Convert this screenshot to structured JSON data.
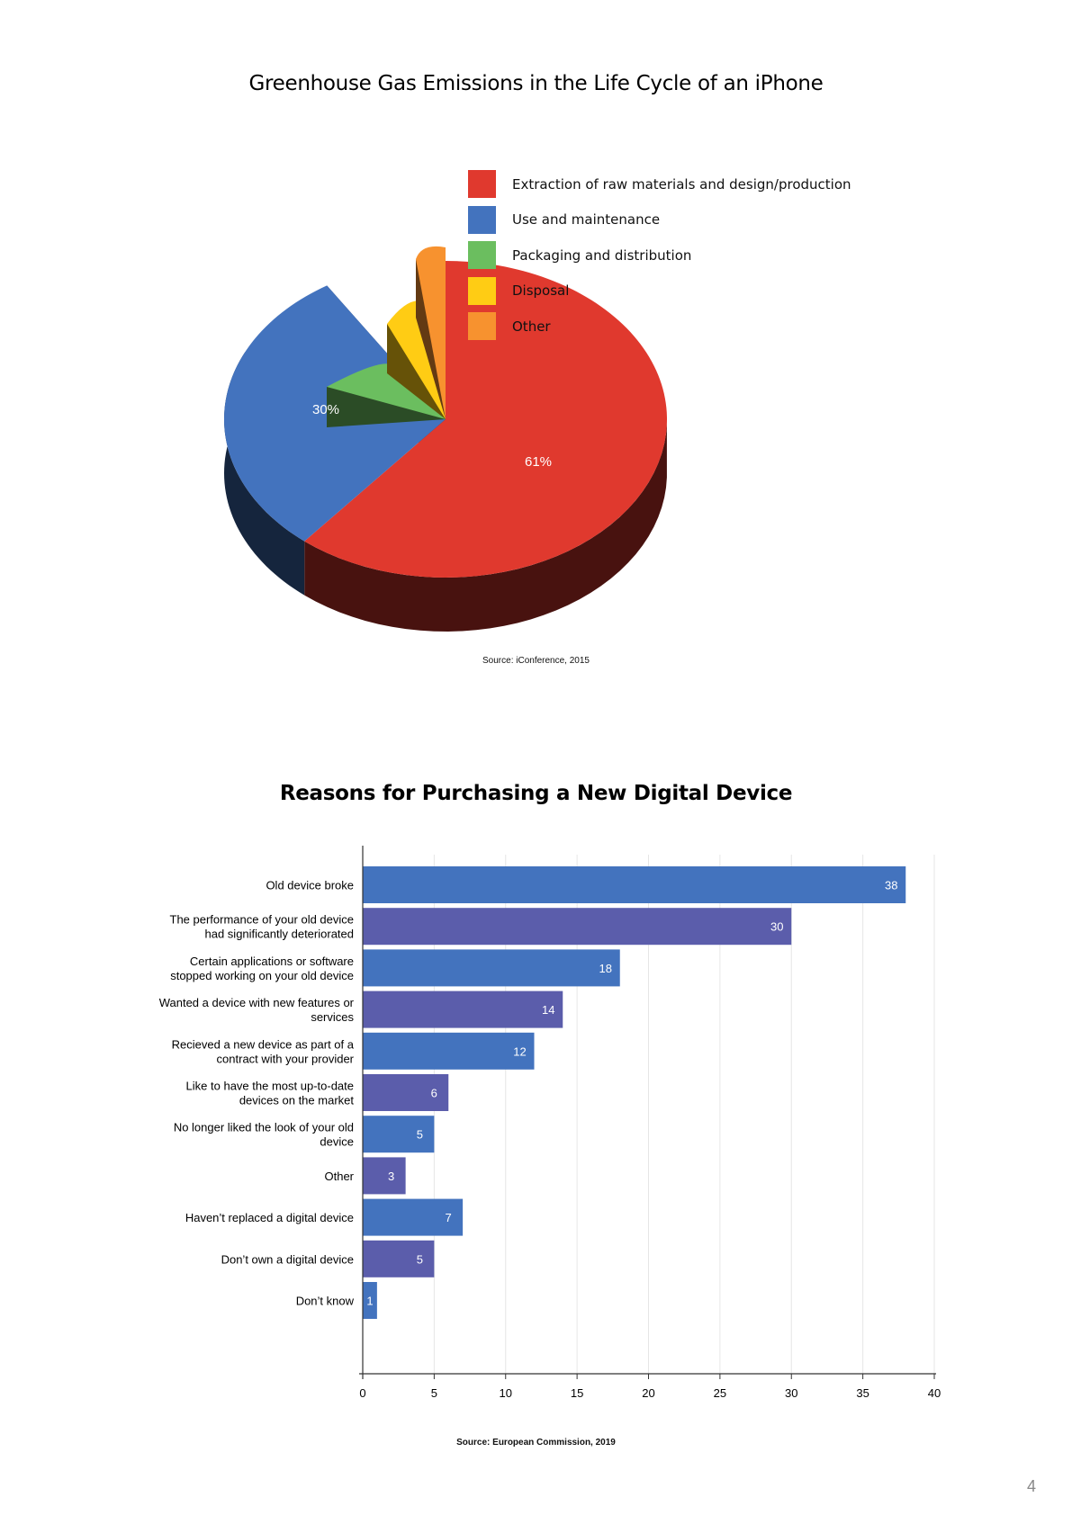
{
  "page_number": "4",
  "charts": {
    "pie": {
      "title": "Greenhouse Gas Emissions in the Life Cycle of an iPhone",
      "source": "Source: iConference, 2015",
      "colors": {
        "extraction": "#E0392E",
        "use": "#4373BE",
        "packaging": "#6BBE5F",
        "disposal": "#FFCC14",
        "other": "#F7922F"
      }
    },
    "bar": {
      "title": "Reasons for Purchasing a New Digital Device",
      "source": "Source: European Commission, 2019",
      "colors": [
        "#4373BE",
        "#5B5DAB"
      ]
    }
  },
  "chart_data": [
    {
      "type": "pie",
      "title": "Greenhouse Gas Emissions in the Life Cycle of an iPhone",
      "slices": [
        {
          "label": "Extraction of raw materials and design/production",
          "value": 61,
          "display": "61%",
          "color": "#E0392E"
        },
        {
          "label": "Use and maintenance",
          "value": 30,
          "display": "30%",
          "color": "#4373BE"
        },
        {
          "label": "Packaging and distribution",
          "value": 5,
          "display": "5%",
          "color": "#6BBE5F"
        },
        {
          "label": "Disposal",
          "value": 2,
          "display": "2%",
          "color": "#FFCC14"
        },
        {
          "label": "Other",
          "value": 2,
          "display": "2%",
          "color": "#F7922F"
        }
      ],
      "legend_position": "right",
      "style": "3d-exploded"
    },
    {
      "type": "bar",
      "orientation": "horizontal",
      "title": "Reasons for Purchasing a New Digital Device",
      "categories": [
        [
          "Old device broke"
        ],
        [
          "The performance of your old device",
          "had significantly deteriorated"
        ],
        [
          "Certain applications or software",
          "stopped working on your old device"
        ],
        [
          "Wanted a device with new features or",
          "services"
        ],
        [
          "Recieved a new device as part of a",
          "contract with your provider"
        ],
        [
          "Like to have the most up-to-date",
          "devices on the market"
        ],
        [
          "No longer liked the look of your old",
          "device"
        ],
        [
          "Other"
        ],
        [
          "Haven’t replaced a digital device"
        ],
        [
          "Don’t own a digital device"
        ],
        [
          "Don’t know"
        ]
      ],
      "values": [
        38,
        30,
        18,
        14,
        12,
        6,
        5,
        3,
        7,
        5,
        1
      ],
      "xlim": [
        0,
        40
      ],
      "xticks": [
        0,
        5,
        10,
        15,
        20,
        25,
        30,
        35,
        40
      ],
      "grid": true
    }
  ]
}
